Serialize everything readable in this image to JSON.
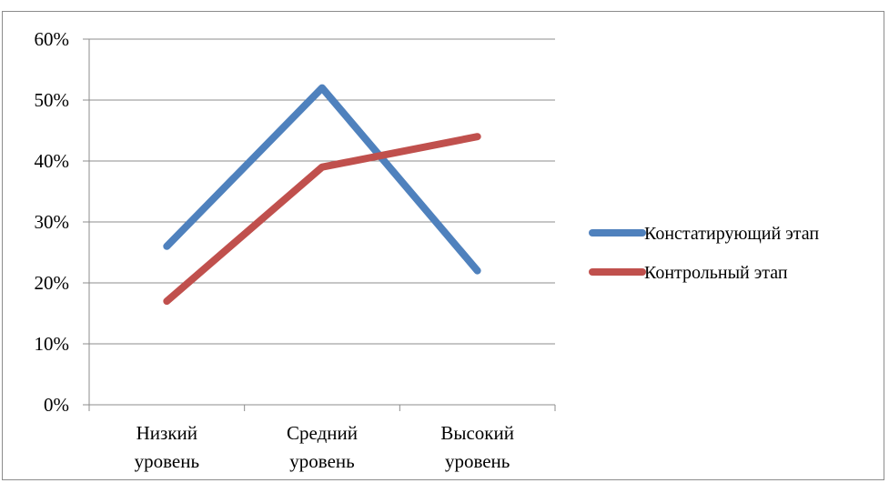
{
  "chart_data": {
    "type": "line",
    "categories": [
      [
        "Низкий",
        "уровень"
      ],
      [
        "Средний",
        "уровень"
      ],
      [
        "Высокий",
        "уровень"
      ]
    ],
    "ylim": [
      0,
      0.6
    ],
    "yticks": [
      0,
      0.1,
      0.2,
      0.3,
      0.4,
      0.5,
      0.6
    ],
    "ytick_labels": [
      "0%",
      "10%",
      "20%",
      "30%",
      "40%",
      "50%",
      "60%"
    ],
    "grid": true,
    "legend_position": "right",
    "series": [
      {
        "name": "Констатирующий этап",
        "values": [
          0.26,
          0.52,
          0.22
        ],
        "color": "#4F81BD"
      },
      {
        "name": "Контрольный этап",
        "values": [
          0.17,
          0.39,
          0.44
        ],
        "color": "#C0504D"
      }
    ]
  }
}
